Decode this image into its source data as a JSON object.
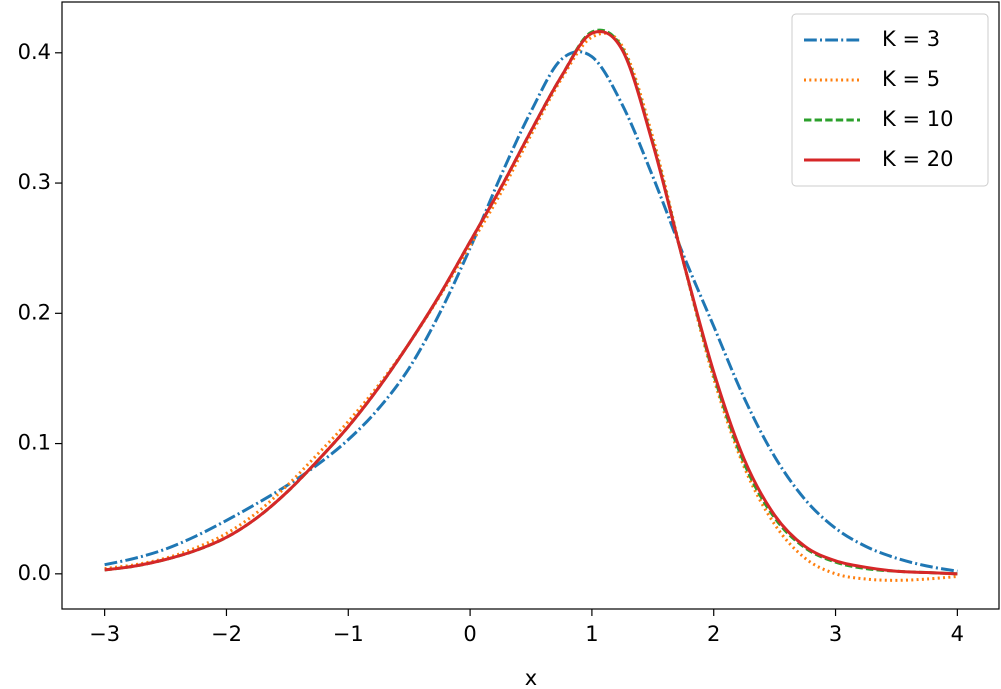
{
  "chart_data": {
    "type": "line",
    "xlabel": "x",
    "x": [
      -3,
      -2.75,
      -2.5,
      -2.25,
      -2,
      -1.75,
      -1.5,
      -1.25,
      -1,
      -0.75,
      -0.5,
      -0.25,
      0,
      0.25,
      0.5,
      0.75,
      1,
      1.25,
      1.5,
      1.75,
      2,
      2.25,
      2.5,
      2.75,
      3,
      3.25,
      3.5,
      3.75,
      4
    ],
    "series": [
      {
        "name": "K = 3",
        "color": "#1f77b4",
        "linestyle": "dashdot",
        "values": [
          0.007,
          0.012,
          0.019,
          0.029,
          0.041,
          0.054,
          0.068,
          0.084,
          0.103,
          0.127,
          0.158,
          0.2,
          0.25,
          0.305,
          0.355,
          0.395,
          0.397,
          0.36,
          0.305,
          0.245,
          0.19,
          0.135,
          0.09,
          0.057,
          0.035,
          0.021,
          0.012,
          0.006,
          0.002
        ]
      },
      {
        "name": "K = 5",
        "color": "#ff7f0e",
        "linestyle": "dotted",
        "values": [
          0.004,
          0.007,
          0.012,
          0.02,
          0.031,
          0.047,
          0.068,
          0.092,
          0.117,
          0.145,
          0.177,
          0.213,
          0.252,
          0.292,
          0.337,
          0.38,
          0.412,
          0.405,
          0.335,
          0.24,
          0.15,
          0.082,
          0.038,
          0.012,
          0.0,
          -0.004,
          -0.005,
          -0.004,
          -0.002
        ]
      },
      {
        "name": "K = 10",
        "color": "#2ca02c",
        "linestyle": "dashed",
        "values": [
          0.003,
          0.006,
          0.011,
          0.018,
          0.028,
          0.043,
          0.063,
          0.087,
          0.113,
          0.143,
          0.177,
          0.214,
          0.255,
          0.296,
          0.34,
          0.382,
          0.416,
          0.403,
          0.331,
          0.24,
          0.153,
          0.085,
          0.043,
          0.02,
          0.009,
          0.004,
          0.002,
          0.001,
          0.0
        ]
      },
      {
        "name": "K = 20",
        "color": "#d62728",
        "linestyle": "solid",
        "values": [
          0.003,
          0.006,
          0.011,
          0.018,
          0.028,
          0.043,
          0.063,
          0.087,
          0.113,
          0.143,
          0.177,
          0.214,
          0.255,
          0.296,
          0.34,
          0.382,
          0.415,
          0.402,
          0.33,
          0.24,
          0.155,
          0.088,
          0.045,
          0.021,
          0.01,
          0.005,
          0.002,
          0.001,
          0.0
        ]
      }
    ],
    "xlim": [
      -3.35,
      4.35
    ],
    "ylim": [
      -0.027,
      0.439
    ],
    "xticks": [
      {
        "value": -3,
        "label": "−3"
      },
      {
        "value": -2,
        "label": "−2"
      },
      {
        "value": -1,
        "label": "−1"
      },
      0,
      1,
      2,
      3,
      4
    ],
    "yticks": [
      {
        "value": 0,
        "label": "0.0"
      },
      0.1,
      0.2,
      0.3,
      0.4
    ],
    "grid": false,
    "legend": "upper-right"
  }
}
